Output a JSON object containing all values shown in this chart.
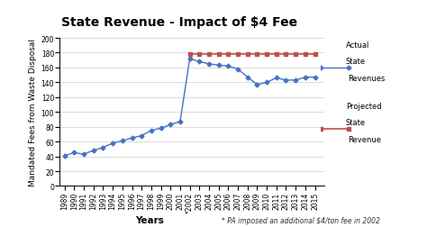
{
  "title": "State Revenue - Impact of $4 Fee",
  "xlabel": "Years",
  "ylabel": "Mandated Fees from Waste Disposal",
  "footnote": "* PA imposed an additional $4/ton fee in 2002",
  "ylim": [
    0,
    200
  ],
  "yticks": [
    0,
    20,
    40,
    60,
    80,
    100,
    120,
    140,
    160,
    180,
    200
  ],
  "actual_years": [
    1989,
    1990,
    1991,
    1992,
    1993,
    1994,
    1995,
    1996,
    1997,
    1998,
    1999,
    2000,
    2001,
    2002,
    2003,
    2004,
    2005,
    2006,
    2007,
    2008,
    2009,
    2010,
    2011,
    2012,
    2013,
    2014,
    2015
  ],
  "actual_values": [
    41,
    45,
    43,
    48,
    52,
    58,
    61,
    65,
    68,
    75,
    78,
    83,
    87,
    172,
    168,
    165,
    163,
    162,
    158,
    147,
    137,
    140,
    146,
    143,
    143,
    147,
    147
  ],
  "projected_years": [
    2002,
    2003,
    2004,
    2005,
    2006,
    2007,
    2008,
    2009,
    2010,
    2011,
    2012,
    2013,
    2014,
    2015
  ],
  "projected_values": [
    178,
    178,
    178,
    178,
    178,
    178,
    178,
    178,
    178,
    178,
    178,
    178,
    178,
    178
  ],
  "actual_color": "#4472C4",
  "projected_color": "#C0504D",
  "background_color": "#FFFFFF",
  "legend_actual_label1": "Actual",
  "legend_actual_label2": "State",
  "legend_actual_label3": "Revenues",
  "legend_projected_label1": "Projected",
  "legend_projected_label2": "State",
  "legend_projected_label3": "Revenue",
  "title_fontsize": 10,
  "axis_label_fontsize": 6.5,
  "tick_fontsize": 5.5,
  "footnote_fontsize": 5.5
}
